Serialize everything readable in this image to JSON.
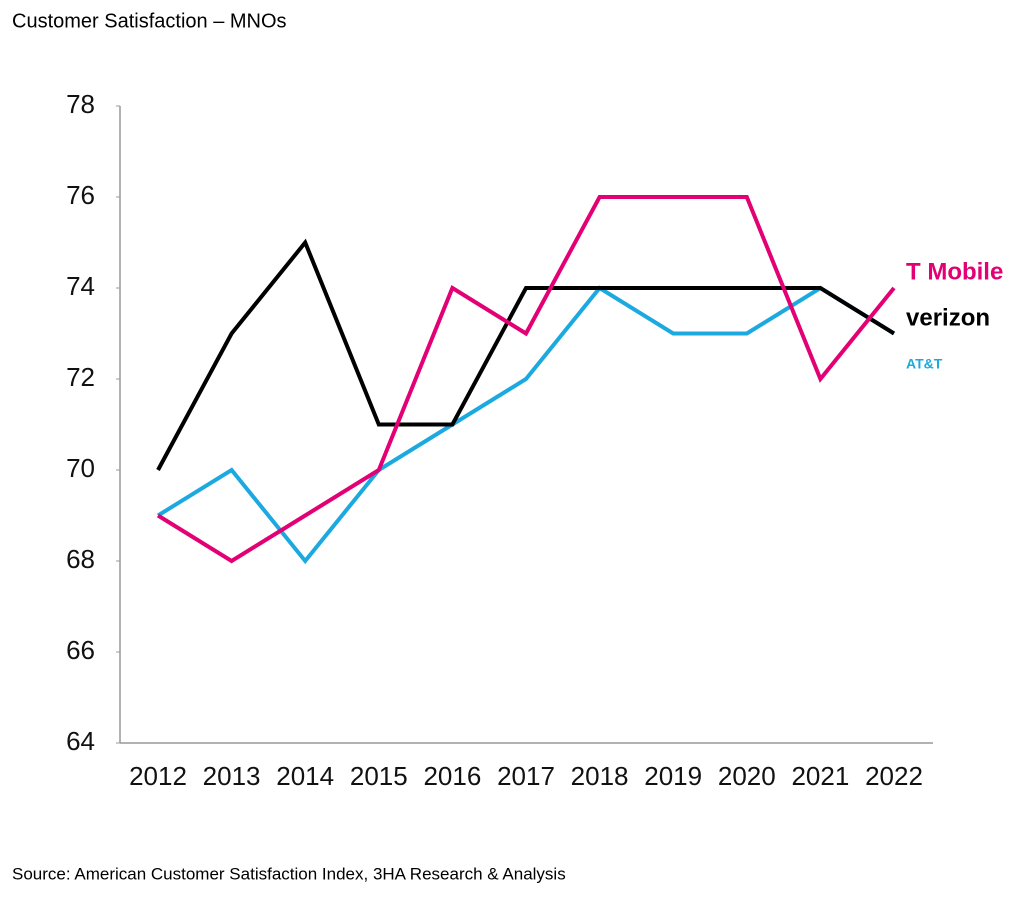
{
  "chart_data": {
    "type": "line",
    "title": "Customer Satisfaction – MNOs",
    "source": "Source: American Customer Satisfaction Index, 3HA Research & Analysis",
    "categories": [
      "2012",
      "2013",
      "2014",
      "2015",
      "2016",
      "2017",
      "2018",
      "2019",
      "2020",
      "2021",
      "2022"
    ],
    "series": [
      {
        "name": "T Mobile",
        "color": "#e20074",
        "values": [
          69,
          68,
          69,
          70,
          74,
          73,
          76,
          76,
          76,
          72,
          74
        ]
      },
      {
        "name": "verizon",
        "color": "#000000",
        "values": [
          70,
          73,
          75,
          71,
          71,
          74,
          74,
          74,
          74,
          74,
          73
        ]
      },
      {
        "name": "AT&T",
        "color": "#1ba9e0",
        "values": [
          69,
          70,
          68,
          70,
          71,
          72,
          74,
          73,
          73,
          74,
          73
        ]
      }
    ],
    "ylim": [
      64,
      78
    ],
    "yticks": [
      64,
      66,
      68,
      70,
      72,
      74,
      76,
      78
    ],
    "grid": false
  }
}
